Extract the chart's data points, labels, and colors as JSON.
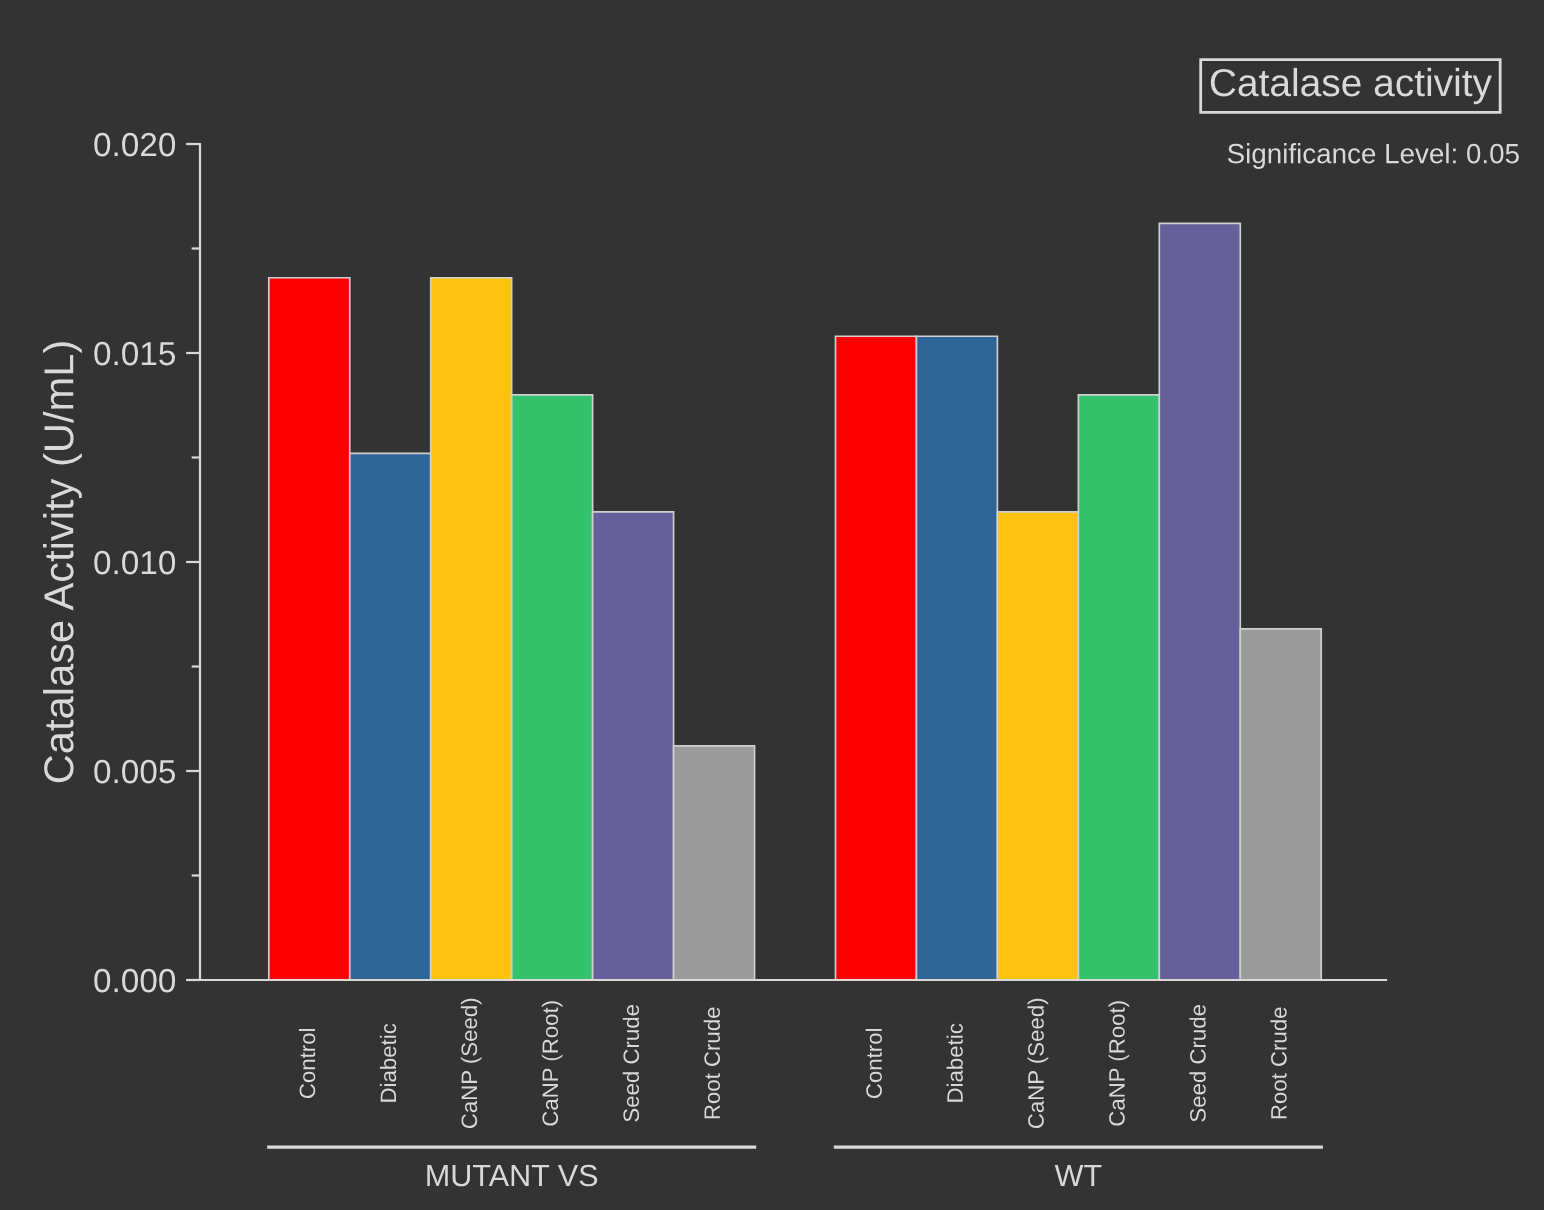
{
  "chart_data": {
    "type": "bar",
    "title": "Catalase activity",
    "ylabel": "Catalase Activity (U/mL)",
    "categories": [
      "Control",
      "Diabetic",
      "CaNP (Seed)",
      "CaNP (Root)",
      "Seed Crude",
      "Root Crude",
      null,
      "Control",
      "Diabetic",
      "CaNP (Seed)",
      "CaNP (Root)",
      "Seed Crude",
      "Root Crude"
    ],
    "values": [
      0.0168,
      0.0126,
      0.0168,
      0.014,
      0.0112,
      0.0056,
      null,
      0.0154,
      0.0154,
      0.0112,
      0.014,
      0.0181,
      0.0084
    ],
    "colors": [
      "#ff0000",
      "#2f6496",
      "#ffc20e",
      "#36c26c",
      "#66609a",
      "#9b9b9b",
      "#333333",
      "#ff0000",
      "#2f6496",
      "#ffc20e",
      "#36c26c",
      "#66609a",
      "#9b9b9b"
    ],
    "ylim": [
      0,
      0.02
    ],
    "yticks": [
      {
        "value": 0,
        "label": "0.000"
      },
      {
        "value": 0.0025,
        "label": null
      },
      {
        "value": 0.005,
        "label": "0.005"
      },
      {
        "value": 0.0075,
        "label": null
      },
      {
        "value": 0.01,
        "label": "0.010"
      },
      {
        "value": 0.0125,
        "label": null
      },
      {
        "value": 0.015,
        "label": "0.015"
      },
      {
        "value": 0.0175,
        "label": null
      },
      {
        "value": 0.02,
        "label": "0.020"
      }
    ],
    "annotations": [
      "MUTANT VS",
      "WT",
      "Significance Level: 0.05"
    ],
    "grid": false,
    "legend": false
  }
}
